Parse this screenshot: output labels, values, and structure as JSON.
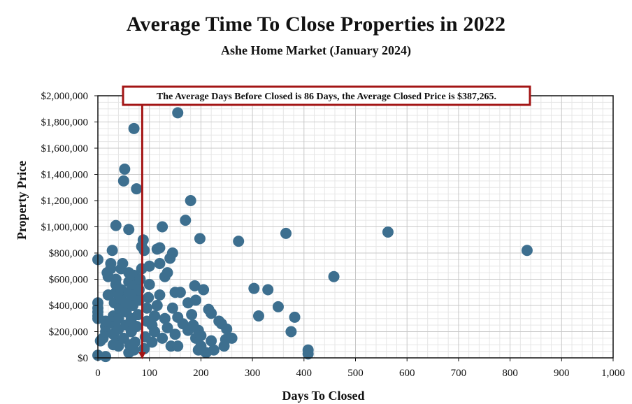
{
  "title": "Average Time To Close Properties in 2022",
  "subtitle": "Ashe Home Market (January 2024)",
  "colors": {
    "points": "#3d6f8f",
    "avg_line": "#a31515",
    "grid_minor": "#e6e6e6",
    "grid_major": "#c8c8c8"
  },
  "chart_data": {
    "type": "scatter",
    "title": "Average Time To Close Properties in 2022",
    "subtitle": "Ashe Home Market (January 2024)",
    "xlabel": "Days To Closed",
    "ylabel": "Property Price",
    "xlim": [
      0,
      1000
    ],
    "ylim": [
      0,
      2000000
    ],
    "x_ticks": [
      0,
      100,
      200,
      300,
      400,
      500,
      600,
      700,
      800,
      900,
      1000
    ],
    "x_tick_labels": [
      "0",
      "100",
      "200",
      "300",
      "400",
      "500",
      "600",
      "700",
      "800",
      "900",
      "1,000"
    ],
    "y_ticks": [
      0,
      200000,
      400000,
      600000,
      800000,
      1000000,
      1200000,
      1400000,
      1600000,
      1800000,
      2000000
    ],
    "y_tick_labels": [
      "$0",
      "$200,000",
      "$400,000",
      "$600,000",
      "$800,000",
      "$1,000,000",
      "$1,200,000",
      "$1,400,000",
      "$1,600,000",
      "$1,800,000",
      "$2,000,000"
    ],
    "grid": true,
    "annotation": "The Average Days Before Closed is 86 Days, the Average Closed Price is $387,265.",
    "average_days": 86,
    "average_price": 387265,
    "points": [
      [
        0,
        20000
      ],
      [
        15,
        10000
      ],
      [
        60,
        40000
      ],
      [
        70,
        60000
      ],
      [
        0,
        300000
      ],
      [
        0,
        320000
      ],
      [
        0,
        350000
      ],
      [
        0,
        380000
      ],
      [
        0,
        420000
      ],
      [
        0,
        750000
      ],
      [
        5,
        130000
      ],
      [
        10,
        150000
      ],
      [
        15,
        200000
      ],
      [
        15,
        240000
      ],
      [
        15,
        280000
      ],
      [
        18,
        650000
      ],
      [
        20,
        480000
      ],
      [
        20,
        620000
      ],
      [
        25,
        680000
      ],
      [
        25,
        720000
      ],
      [
        28,
        820000
      ],
      [
        30,
        100000
      ],
      [
        30,
        180000
      ],
      [
        30,
        260000
      ],
      [
        30,
        320000
      ],
      [
        32,
        420000
      ],
      [
        35,
        500000
      ],
      [
        35,
        560000
      ],
      [
        35,
        600000
      ],
      [
        35,
        1010000
      ],
      [
        38,
        130000
      ],
      [
        40,
        90000
      ],
      [
        40,
        220000
      ],
      [
        40,
        300000
      ],
      [
        42,
        380000
      ],
      [
        45,
        450000
      ],
      [
        45,
        520000
      ],
      [
        45,
        680000
      ],
      [
        48,
        720000
      ],
      [
        50,
        1350000
      ],
      [
        52,
        1440000
      ],
      [
        50,
        150000
      ],
      [
        55,
        250000
      ],
      [
        55,
        350000
      ],
      [
        58,
        420000
      ],
      [
        60,
        500000
      ],
      [
        60,
        580000
      ],
      [
        60,
        650000
      ],
      [
        60,
        980000
      ],
      [
        62,
        100000
      ],
      [
        65,
        200000
      ],
      [
        65,
        300000
      ],
      [
        68,
        400000
      ],
      [
        70,
        480000
      ],
      [
        70,
        560000
      ],
      [
        70,
        630000
      ],
      [
        70,
        1750000
      ],
      [
        72,
        120000
      ],
      [
        75,
        1290000
      ],
      [
        75,
        240000
      ],
      [
        78,
        330000
      ],
      [
        80,
        440000
      ],
      [
        80,
        520000
      ],
      [
        82,
        600000
      ],
      [
        85,
        680000
      ],
      [
        85,
        850000
      ],
      [
        88,
        900000
      ],
      [
        90,
        820000
      ],
      [
        90,
        70000
      ],
      [
        92,
        160000
      ],
      [
        95,
        280000
      ],
      [
        95,
        380000
      ],
      [
        98,
        460000
      ],
      [
        100,
        560000
      ],
      [
        100,
        700000
      ],
      [
        105,
        120000
      ],
      [
        105,
        250000
      ],
      [
        110,
        200000
      ],
      [
        110,
        320000
      ],
      [
        115,
        400000
      ],
      [
        115,
        830000
      ],
      [
        120,
        480000
      ],
      [
        120,
        720000
      ],
      [
        120,
        840000
      ],
      [
        125,
        1000000
      ],
      [
        125,
        150000
      ],
      [
        130,
        300000
      ],
      [
        130,
        620000
      ],
      [
        135,
        230000
      ],
      [
        135,
        650000
      ],
      [
        140,
        760000
      ],
      [
        142,
        90000
      ],
      [
        145,
        380000
      ],
      [
        145,
        800000
      ],
      [
        150,
        180000
      ],
      [
        150,
        500000
      ],
      [
        155,
        90000
      ],
      [
        155,
        310000
      ],
      [
        155,
        1870000
      ],
      [
        160,
        500000
      ],
      [
        165,
        260000
      ],
      [
        170,
        1050000
      ],
      [
        175,
        210000
      ],
      [
        175,
        420000
      ],
      [
        180,
        1200000
      ],
      [
        182,
        330000
      ],
      [
        185,
        250000
      ],
      [
        188,
        550000
      ],
      [
        190,
        150000
      ],
      [
        190,
        440000
      ],
      [
        195,
        60000
      ],
      [
        195,
        210000
      ],
      [
        198,
        910000
      ],
      [
        200,
        90000
      ],
      [
        200,
        170000
      ],
      [
        205,
        520000
      ],
      [
        210,
        40000
      ],
      [
        215,
        370000
      ],
      [
        220,
        340000
      ],
      [
        220,
        130000
      ],
      [
        225,
        60000
      ],
      [
        235,
        280000
      ],
      [
        240,
        260000
      ],
      [
        245,
        90000
      ],
      [
        248,
        140000
      ],
      [
        250,
        220000
      ],
      [
        260,
        150000
      ],
      [
        273,
        890000
      ],
      [
        303,
        530000
      ],
      [
        312,
        320000
      ],
      [
        330,
        520000
      ],
      [
        350,
        390000
      ],
      [
        365,
        950000
      ],
      [
        375,
        200000
      ],
      [
        382,
        310000
      ],
      [
        408,
        60000
      ],
      [
        408,
        30000
      ],
      [
        458,
        620000
      ],
      [
        563,
        960000
      ],
      [
        833,
        820000
      ]
    ]
  }
}
